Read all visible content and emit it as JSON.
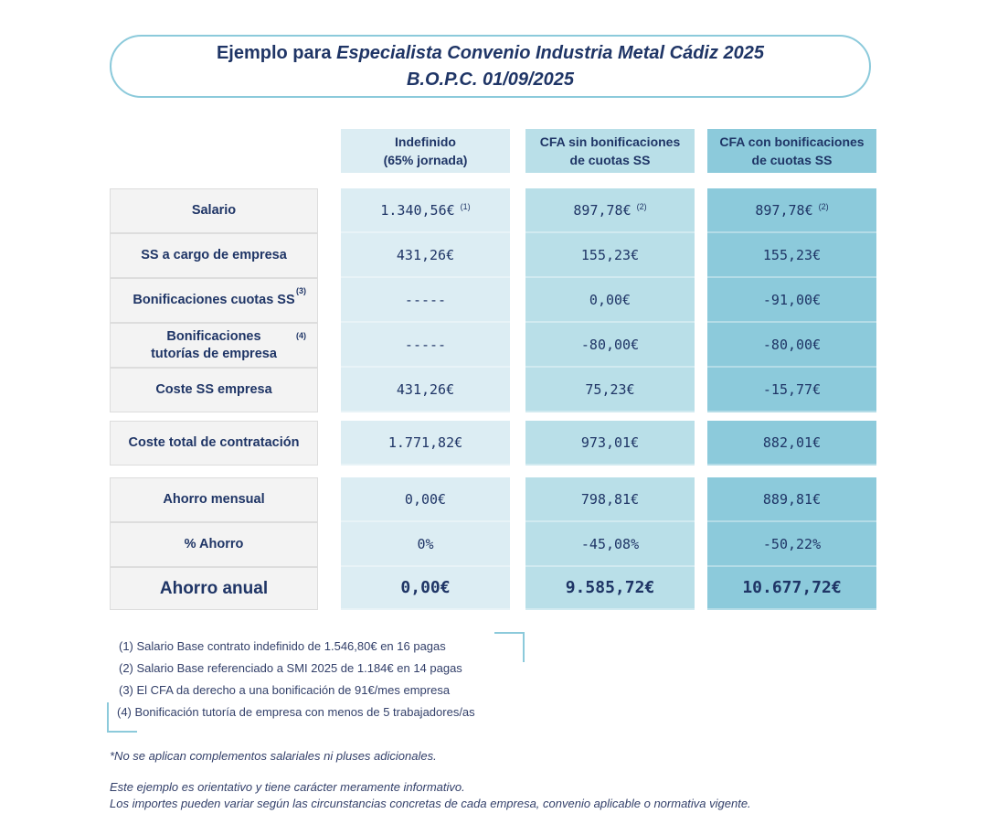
{
  "title": {
    "line1_prefix": "Ejemplo para ",
    "line1_italic": "Especialista Convenio Industria Metal Cádiz 2025",
    "line2": "B.O.P.C. 01/09/2025"
  },
  "columns": [
    {
      "line1": "Indefinido",
      "line2": "(65% jornada)"
    },
    {
      "line1": "CFA sin bonificaciones",
      "line2": "de cuotas SS"
    },
    {
      "line1": "CFA con bonificaciones",
      "line2": "de cuotas SS"
    }
  ],
  "colors": {
    "col1": "#dcedf3",
    "col2": "#b9dfe8",
    "col3": "#8ccadb",
    "border": "#8ccadb",
    "text": "#1f3566"
  },
  "rows": [
    {
      "label": "Salario",
      "sup": "",
      "values": [
        "1.340,56€",
        "897,78€",
        "897,78€"
      ],
      "value_sups": [
        "(1)",
        "(2)",
        "(2)"
      ]
    },
    {
      "label": "SS a cargo de empresa",
      "sup": "",
      "values": [
        "431,26€",
        "155,23€",
        "155,23€"
      ],
      "value_sups": [
        "",
        "",
        ""
      ]
    },
    {
      "label": "Bonificaciones cuotas SS",
      "sup": "(3)",
      "values": [
        "-----",
        "0,00€",
        "-91,00€"
      ],
      "value_sups": [
        "",
        "",
        ""
      ]
    },
    {
      "label": "Bonificaciones tutorías de empresa",
      "sup": "(4)",
      "values": [
        "-----",
        "-80,00€",
        "-80,00€"
      ],
      "value_sups": [
        "",
        "",
        ""
      ]
    },
    {
      "label": "Coste SS empresa",
      "sup": "",
      "values": [
        "431,26€",
        "75,23€",
        "-15,77€"
      ],
      "value_sups": [
        "",
        "",
        ""
      ]
    },
    {
      "label": "Coste total de contratación",
      "sup": "",
      "values": [
        "1.771,82€",
        "973,01€",
        "882,01€"
      ],
      "value_sups": [
        "",
        "",
        ""
      ]
    },
    {
      "label": "Ahorro mensual",
      "sup": "",
      "values": [
        "0,00€",
        "798,81€",
        "889,81€"
      ],
      "value_sups": [
        "",
        "",
        ""
      ]
    },
    {
      "label": "% Ahorro",
      "sup": "",
      "values": [
        "0%",
        "-45,08%",
        "-50,22%"
      ],
      "value_sups": [
        "",
        "",
        ""
      ]
    },
    {
      "label": "Ahorro anual",
      "sup": "",
      "values": [
        "0,00€",
        "9.585,72€",
        "10.677,72€"
      ],
      "value_sups": [
        "",
        "",
        ""
      ]
    }
  ],
  "notes": [
    "(1)  Salario Base contrato indefinido de 1.546,80€ en 16 pagas",
    "(2)  Salario Base referenciado a SMI 2025 de 1.184€ en 14 pagas",
    "(3)  El CFA da derecho a una bonificación de 91€/mes empresa",
    "(4) Bonificación tutoría de empresa con menos de 5 trabajadores/as"
  ],
  "disclaimer1": "*No se aplican complementos salariales ni pluses adicionales.",
  "disclaimer2": "Este ejemplo es orientativo y tiene carácter meramente informativo.",
  "disclaimer3": "Los importes pueden variar según las circunstancias concretas de cada empresa, convenio aplicable o normativa vigente."
}
